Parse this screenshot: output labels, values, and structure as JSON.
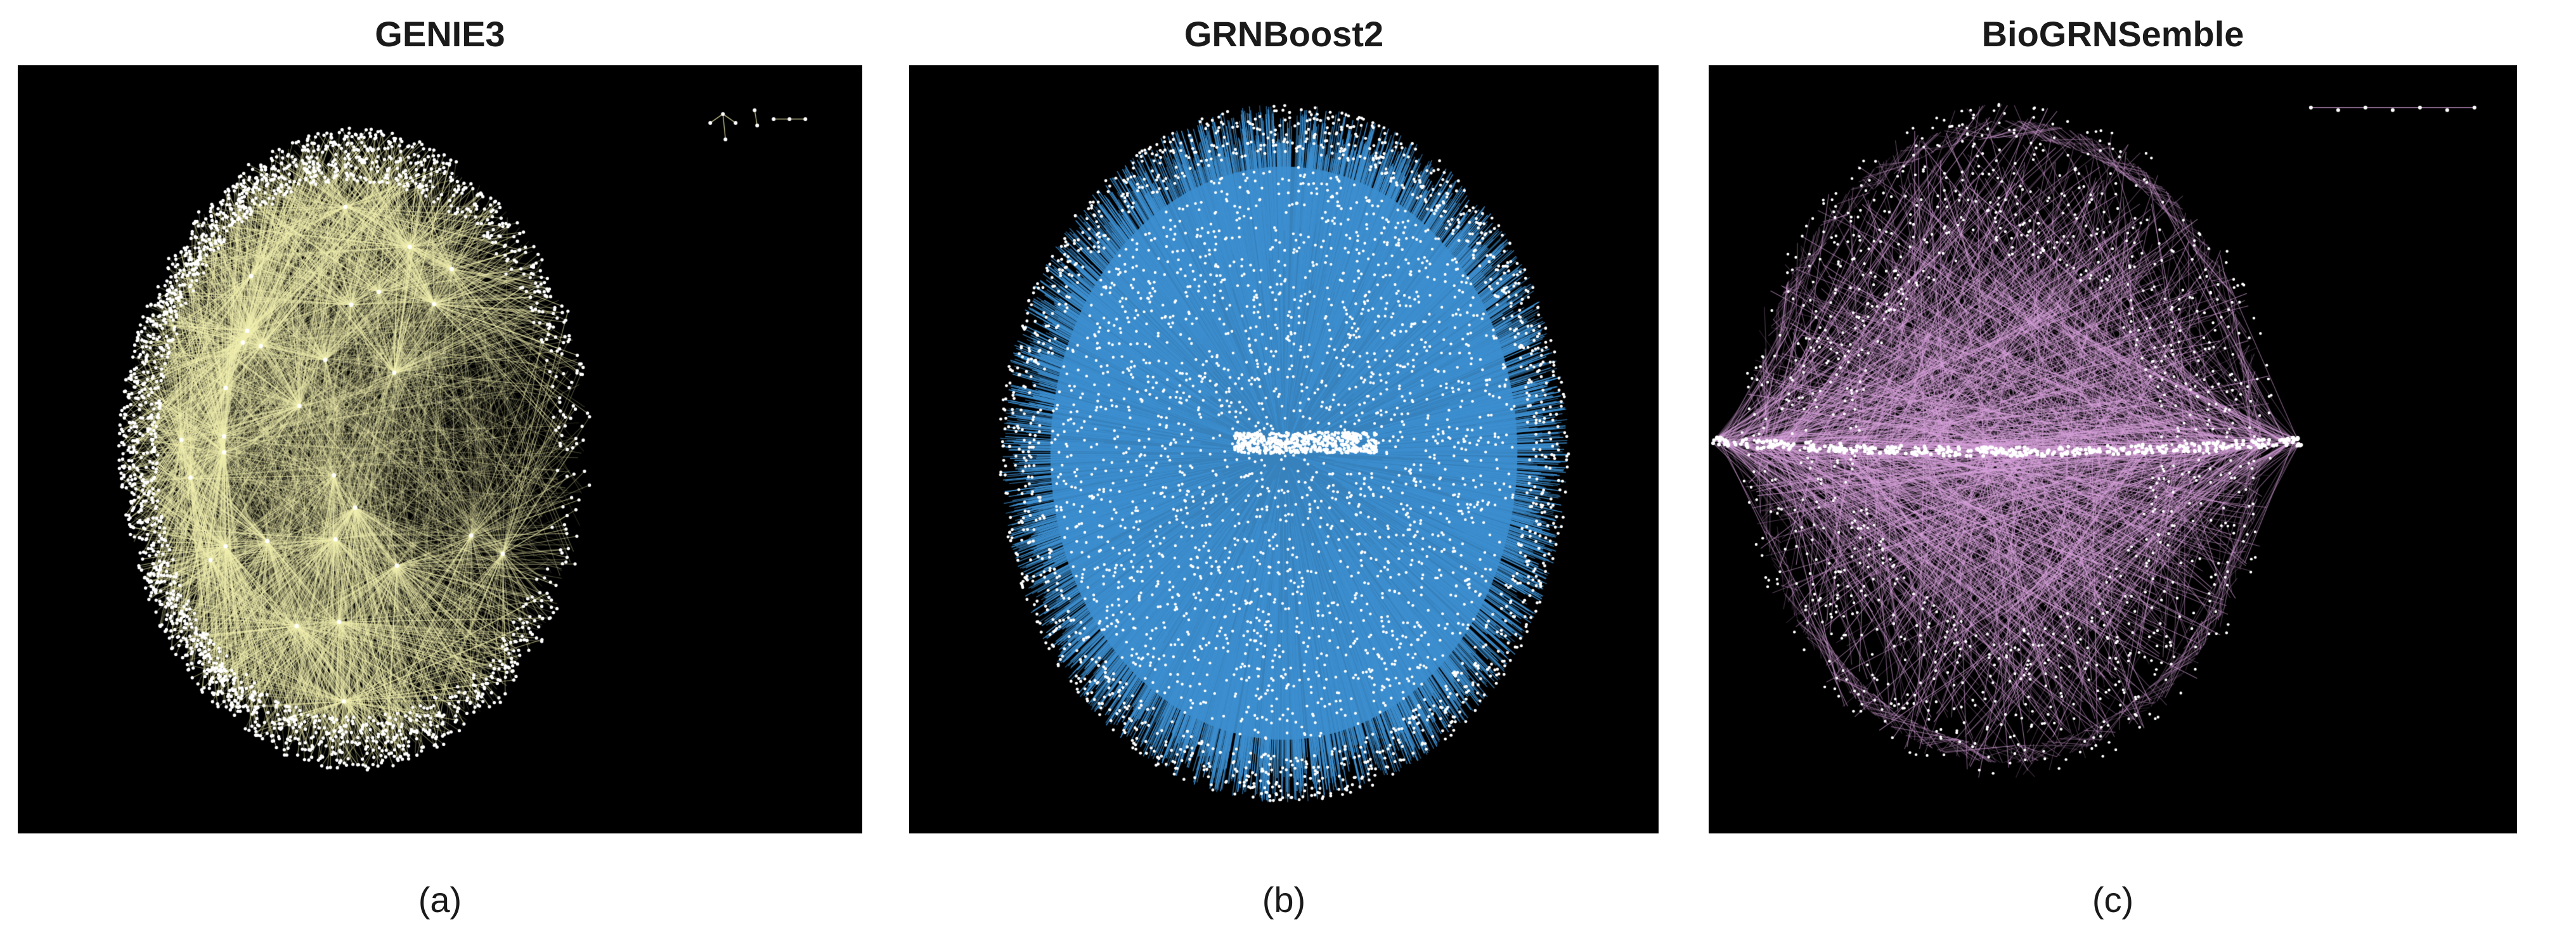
{
  "panels": [
    {
      "id": "a",
      "title": "GENIE3",
      "caption": "(a)",
      "edge_color": "#f2f0b0",
      "node_color": "#ffffff",
      "layout_style": "hub-clusters"
    },
    {
      "id": "b",
      "title": "GRNBoost2",
      "caption": "(b)",
      "edge_color": "#3d8fd0",
      "node_color": "#ffffff",
      "layout_style": "dense-radial"
    },
    {
      "id": "c",
      "title": "BioGRNSemble",
      "caption": "(c)",
      "edge_color": "#d9a3dd",
      "node_color": "#ffffff",
      "layout_style": "horizontal-band"
    }
  ]
}
